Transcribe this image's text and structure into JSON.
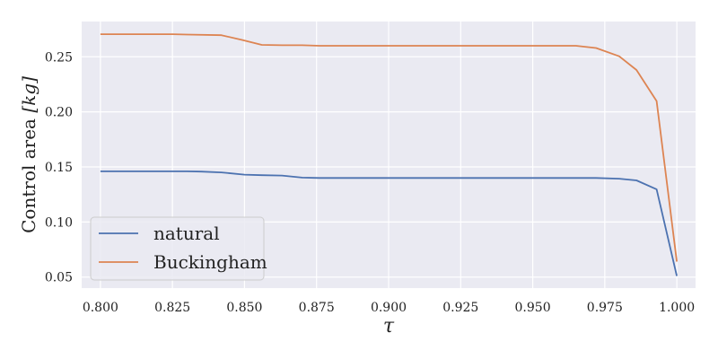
{
  "chart_data": {
    "type": "line",
    "title": "",
    "xlabel": "τ",
    "ylabel_main": "Control area ",
    "ylabel_unit": "[kg]",
    "xlim": [
      0.7935,
      1.0065
    ],
    "ylim": [
      0.04,
      0.282
    ],
    "xticks": [
      0.8,
      0.825,
      0.85,
      0.875,
      0.9,
      0.925,
      0.95,
      0.975,
      1.0
    ],
    "xtick_labels": [
      "0.800",
      "0.825",
      "0.850",
      "0.875",
      "0.900",
      "0.925",
      "0.950",
      "0.975",
      "1.000"
    ],
    "yticks": [
      0.05,
      0.1,
      0.15,
      0.2,
      0.25
    ],
    "ytick_labels": [
      "0.05",
      "0.10",
      "0.15",
      "0.20",
      "0.25"
    ],
    "grid": true,
    "legend_position": "lower-left",
    "series": [
      {
        "name": "natural",
        "color": "#4c72b0",
        "x": [
          0.8,
          0.81,
          0.82,
          0.83,
          0.835,
          0.842,
          0.85,
          0.856,
          0.863,
          0.87,
          0.876,
          0.9,
          0.925,
          0.95,
          0.965,
          0.972,
          0.98,
          0.986,
          0.993,
          1.0
        ],
        "y": [
          0.146,
          0.146,
          0.146,
          0.146,
          0.1458,
          0.145,
          0.143,
          0.1425,
          0.1422,
          0.1403,
          0.14,
          0.14,
          0.14,
          0.14,
          0.14,
          0.14,
          0.1393,
          0.1378,
          0.1297,
          0.051
        ]
      },
      {
        "name": "Buckingham",
        "color": "#dd8452",
        "x": [
          0.8,
          0.815,
          0.825,
          0.83,
          0.842,
          0.849,
          0.856,
          0.863,
          0.87,
          0.876,
          0.9,
          0.925,
          0.95,
          0.965,
          0.972,
          0.98,
          0.986,
          0.993,
          1.0
        ],
        "y": [
          0.2705,
          0.2705,
          0.2705,
          0.2702,
          0.2696,
          0.2654,
          0.2608,
          0.2605,
          0.2605,
          0.26,
          0.26,
          0.26,
          0.26,
          0.26,
          0.258,
          0.2505,
          0.238,
          0.2098,
          0.064
        ]
      }
    ]
  }
}
